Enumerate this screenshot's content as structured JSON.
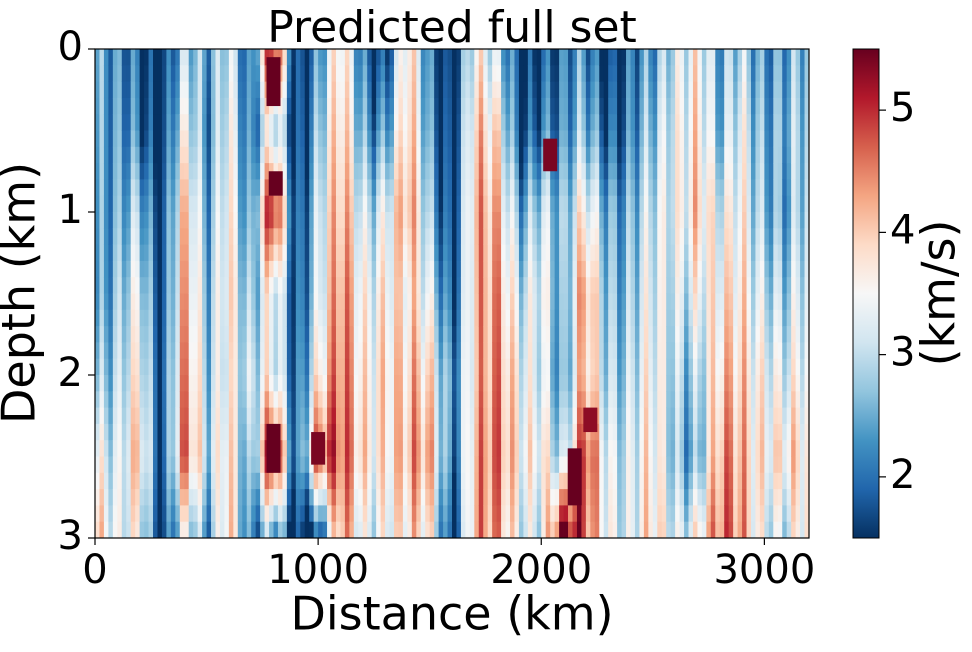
{
  "chart_data": {
    "type": "heatmap",
    "title": "Predicted full set",
    "xlabel": "Distance (km)",
    "ylabel": "Depth (km)",
    "xlim": [
      0,
      3200
    ],
    "ylim": [
      0,
      3
    ],
    "y_inverted": true,
    "xticks": [
      {
        "value": 0,
        "label": "0"
      },
      {
        "value": 1000,
        "label": "1000"
      },
      {
        "value": 2000,
        "label": "2000"
      },
      {
        "value": 3000,
        "label": "3000"
      }
    ],
    "yticks": [
      {
        "value": 0,
        "label": "0"
      },
      {
        "value": 1,
        "label": "1"
      },
      {
        "value": 2,
        "label": "2"
      },
      {
        "value": 3,
        "label": "3"
      }
    ],
    "colorbar": {
      "label": "(km/s)",
      "range": [
        1.5,
        5.5
      ],
      "ticks": [
        {
          "value": 2,
          "label": "2"
        },
        {
          "value": 3,
          "label": "3"
        },
        {
          "value": 4,
          "label": "4"
        },
        {
          "value": 5,
          "label": "5"
        }
      ],
      "colormap": "RdBu_r",
      "colormap_stops": [
        "#053061",
        "#2166ac",
        "#4393c3",
        "#92c5de",
        "#d1e5f0",
        "#f7f7f7",
        "#fddbc7",
        "#f4a582",
        "#d6604d",
        "#b2182b",
        "#67001f"
      ]
    },
    "grid": false,
    "columns": [
      {
        "distance": 0,
        "velocity": [
          2.5,
          2.4,
          2.3,
          2.2,
          2.6,
          3.4,
          4.0
        ]
      },
      {
        "distance": 100,
        "velocity": [
          1.8,
          1.9,
          2.0,
          2.2,
          2.4,
          2.6,
          2.8
        ]
      },
      {
        "distance": 200,
        "velocity": [
          2.0,
          2.2,
          3.0,
          3.5,
          3.8,
          4.2,
          3.6
        ]
      },
      {
        "distance": 300,
        "velocity": [
          1.6,
          1.6,
          1.7,
          1.7,
          1.8,
          1.7,
          1.6
        ]
      },
      {
        "distance": 400,
        "velocity": [
          2.6,
          3.2,
          3.8,
          4.0,
          4.2,
          4.4,
          3.0
        ]
      },
      {
        "distance": 500,
        "velocity": [
          2.2,
          2.0,
          2.2,
          2.4,
          2.6,
          2.8,
          2.0
        ]
      },
      {
        "distance": 600,
        "velocity": [
          3.6,
          3.9,
          4.1,
          4.2,
          4.0,
          4.3,
          4.5
        ]
      },
      {
        "distance": 700,
        "velocity": [
          1.7,
          1.8,
          2.0,
          2.4,
          2.8,
          2.2,
          1.8
        ]
      },
      {
        "distance": 800,
        "velocity": [
          5.3,
          3.1,
          5.2,
          3.3,
          3.2,
          5.4,
          2.2
        ]
      },
      {
        "distance": 900,
        "velocity": [
          1.7,
          1.7,
          1.8,
          1.9,
          2.0,
          1.9,
          1.7
        ]
      },
      {
        "distance": 1000,
        "velocity": [
          2.4,
          2.8,
          3.2,
          3.3,
          3.8,
          5.0,
          1.6
        ]
      },
      {
        "distance": 1100,
        "velocity": [
          3.6,
          3.8,
          4.0,
          4.2,
          4.3,
          4.4,
          4.1
        ]
      },
      {
        "distance": 1200,
        "velocity": [
          2.0,
          2.4,
          3.0,
          3.4,
          3.6,
          3.8,
          3.2
        ]
      },
      {
        "distance": 1300,
        "velocity": [
          1.9,
          2.6,
          3.6,
          4.0,
          4.2,
          4.1,
          3.8
        ]
      },
      {
        "distance": 1400,
        "velocity": [
          3.8,
          4.0,
          4.2,
          3.6,
          3.8,
          4.0,
          3.6
        ]
      },
      {
        "distance": 1500,
        "velocity": [
          1.8,
          2.0,
          2.4,
          3.0,
          3.6,
          4.0,
          3.4
        ]
      },
      {
        "distance": 1600,
        "velocity": [
          1.6,
          1.7,
          1.8,
          2.0,
          2.4,
          2.2,
          1.7
        ]
      },
      {
        "distance": 1700,
        "velocity": [
          3.6,
          4.0,
          4.2,
          4.1,
          4.0,
          4.2,
          4.3
        ]
      },
      {
        "distance": 1800,
        "velocity": [
          2.6,
          3.4,
          3.8,
          4.0,
          4.1,
          4.2,
          4.0
        ]
      },
      {
        "distance": 1900,
        "velocity": [
          1.7,
          1.8,
          2.6,
          3.2,
          3.6,
          3.8,
          3.4
        ]
      },
      {
        "distance": 2000,
        "velocity": [
          2.0,
          2.4,
          3.4,
          3.8,
          3.6,
          4.0,
          3.5
        ]
      },
      {
        "distance": 2100,
        "velocity": [
          1.7,
          1.8,
          2.2,
          2.0,
          1.9,
          2.4,
          5.3
        ]
      },
      {
        "distance": 2200,
        "velocity": [
          2.2,
          2.6,
          3.6,
          4.4,
          4.2,
          5.0,
          4.6
        ]
      },
      {
        "distance": 2300,
        "velocity": [
          1.8,
          2.2,
          2.8,
          3.0,
          3.2,
          3.6,
          3.8
        ]
      },
      {
        "distance": 2400,
        "velocity": [
          1.9,
          2.0,
          2.4,
          2.6,
          2.8,
          3.0,
          3.0
        ]
      },
      {
        "distance": 2500,
        "velocity": [
          2.0,
          2.4,
          2.8,
          3.0,
          3.2,
          3.4,
          3.6
        ]
      },
      {
        "distance": 2600,
        "velocity": [
          3.4,
          3.6,
          3.6,
          3.4,
          3.2,
          3.0,
          3.4
        ]
      },
      {
        "distance": 2700,
        "velocity": [
          3.8,
          4.0,
          4.2,
          3.6,
          3.0,
          2.6,
          3.8
        ]
      },
      {
        "distance": 2800,
        "velocity": [
          2.0,
          2.2,
          2.8,
          3.2,
          3.6,
          4.0,
          4.2
        ]
      },
      {
        "distance": 2900,
        "velocity": [
          3.0,
          3.4,
          3.6,
          3.8,
          4.0,
          4.2,
          4.4
        ]
      },
      {
        "distance": 3000,
        "velocity": [
          2.6,
          2.8,
          3.0,
          3.4,
          3.8,
          4.0,
          3.6
        ]
      },
      {
        "distance": 3100,
        "velocity": [
          2.2,
          2.4,
          2.2,
          2.6,
          3.0,
          3.6,
          2.8
        ]
      },
      {
        "distance": 3200,
        "velocity": [
          2.4,
          2.6,
          2.8,
          3.0,
          3.2,
          3.4,
          3.6
        ]
      }
    ],
    "depth_samples": [
      0,
      0.5,
      1.0,
      1.5,
      2.0,
      2.5,
      3.0
    ],
    "features": [
      {
        "distance": 800,
        "depth_range": [
          0.05,
          0.35
        ],
        "velocity": 5.5
      },
      {
        "distance": 810,
        "depth_range": [
          0.75,
          0.9
        ],
        "velocity": 5.5
      },
      {
        "distance": 800,
        "depth_range": [
          2.3,
          2.6
        ],
        "velocity": 5.5
      },
      {
        "distance": 1000,
        "depth_range": [
          2.35,
          2.55
        ],
        "velocity": 5.4
      },
      {
        "distance": 2150,
        "depth_range": [
          2.45,
          2.8
        ],
        "velocity": 5.5
      },
      {
        "distance": 2040,
        "depth_range": [
          0.55,
          0.75
        ],
        "velocity": 5.4
      },
      {
        "distance": 2220,
        "depth_range": [
          2.2,
          2.35
        ],
        "velocity": 5.3
      }
    ]
  }
}
